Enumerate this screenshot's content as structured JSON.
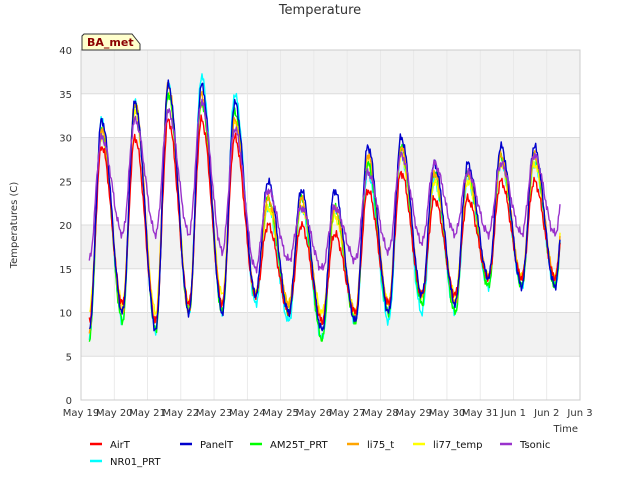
{
  "chart_data": {
    "type": "line",
    "title": "Temperature",
    "xlabel": "Time",
    "ylabel": "Temperatures (C)",
    "badge": "BA_met",
    "ylim": [
      0,
      40
    ],
    "yticks": [
      0,
      5,
      10,
      15,
      20,
      25,
      30,
      35,
      40
    ],
    "xlim": [
      0,
      15
    ],
    "xticks": [
      {
        "x": 0,
        "label": "May 19"
      },
      {
        "x": 1,
        "label": "May 20"
      },
      {
        "x": 2,
        "label": "May 21"
      },
      {
        "x": 3,
        "label": "May 22"
      },
      {
        "x": 4,
        "label": "May 23"
      },
      {
        "x": 5,
        "label": "May 24"
      },
      {
        "x": 6,
        "label": "May 25"
      },
      {
        "x": 7,
        "label": "May 26"
      },
      {
        "x": 8,
        "label": "May 27"
      },
      {
        "x": 9,
        "label": "May 28"
      },
      {
        "x": 10,
        "label": "May 29"
      },
      {
        "x": 11,
        "label": "May 30"
      },
      {
        "x": 12,
        "label": "May 31"
      },
      {
        "x": 13,
        "label": "Jun 1"
      },
      {
        "x": 14,
        "label": "Jun 2"
      },
      {
        "x": 15,
        "label": "Jun 3"
      }
    ],
    "grid": true,
    "legend_position": "bottom",
    "series": [
      {
        "name": "AirT",
        "color": "#ff0000",
        "offset": 0.0,
        "scale": 0.9,
        "mins": [
          9,
          11,
          9,
          11,
          11,
          12,
          10,
          9,
          10,
          11,
          12,
          12,
          14,
          14
        ],
        "maxs": [
          29,
          30,
          32,
          32,
          30,
          20,
          20,
          19,
          24,
          26,
          23,
          23,
          25,
          25
        ]
      },
      {
        "name": "PanelT",
        "color": "#0000cc",
        "offset": 0.0,
        "scale": 1.0,
        "mins": [
          8,
          10,
          8,
          10,
          10,
          12,
          10,
          8,
          9,
          10,
          12,
          11,
          14,
          13
        ],
        "maxs": [
          32,
          34,
          36,
          36,
          34,
          25,
          24,
          24,
          29,
          30,
          27,
          27,
          29,
          29
        ]
      },
      {
        "name": "AM25T_PRT",
        "color": "#00ff00",
        "offset": 0.0,
        "scale": 1.0,
        "mins": [
          7,
          9,
          8,
          10,
          10,
          12,
          10,
          7,
          9,
          10,
          11,
          10,
          13,
          13
        ],
        "maxs": [
          31,
          34,
          35,
          34,
          33,
          23,
          23,
          22,
          27,
          29,
          26,
          26,
          28,
          28
        ]
      },
      {
        "name": "li75_t",
        "color": "#ffa500",
        "offset": 0.0,
        "scale": 1.0,
        "mins": [
          8,
          10,
          9,
          10,
          11,
          12,
          11,
          9,
          10,
          11,
          12,
          11,
          14,
          14
        ],
        "maxs": [
          31,
          34,
          36,
          35,
          32,
          23,
          23,
          22,
          28,
          29,
          26,
          26,
          28,
          28
        ]
      },
      {
        "name": "li77_temp",
        "color": "#ffff00",
        "offset": 0.0,
        "scale": 1.0,
        "mins": [
          10,
          11,
          10,
          11,
          12,
          12,
          11,
          10,
          10,
          11,
          12,
          12,
          14,
          14
        ],
        "maxs": [
          30,
          33,
          35,
          34,
          32,
          22,
          22,
          21,
          27,
          28,
          25,
          25,
          27,
          27
        ]
      },
      {
        "name": "Tsonic",
        "color": "#9932cc",
        "offset": 0.0,
        "scale": 1.0,
        "mins": [
          16,
          19,
          19,
          19,
          17,
          15,
          16,
          15,
          16,
          17,
          18,
          19,
          19,
          19
        ],
        "maxs": [
          30,
          32,
          33,
          34,
          31,
          24,
          22,
          22,
          26,
          28,
          27,
          26,
          27,
          28
        ]
      },
      {
        "name": "NR01_PRT",
        "color": "#00ffff",
        "offset": 0.0,
        "scale": 1.0,
        "mins": [
          7,
          9,
          8,
          10,
          10,
          11,
          9,
          7,
          9,
          9,
          10,
          10,
          13,
          13
        ],
        "maxs": [
          32,
          34,
          36,
          37,
          35,
          22,
          22,
          22,
          26,
          28,
          25,
          25,
          27,
          27
        ]
      }
    ]
  }
}
